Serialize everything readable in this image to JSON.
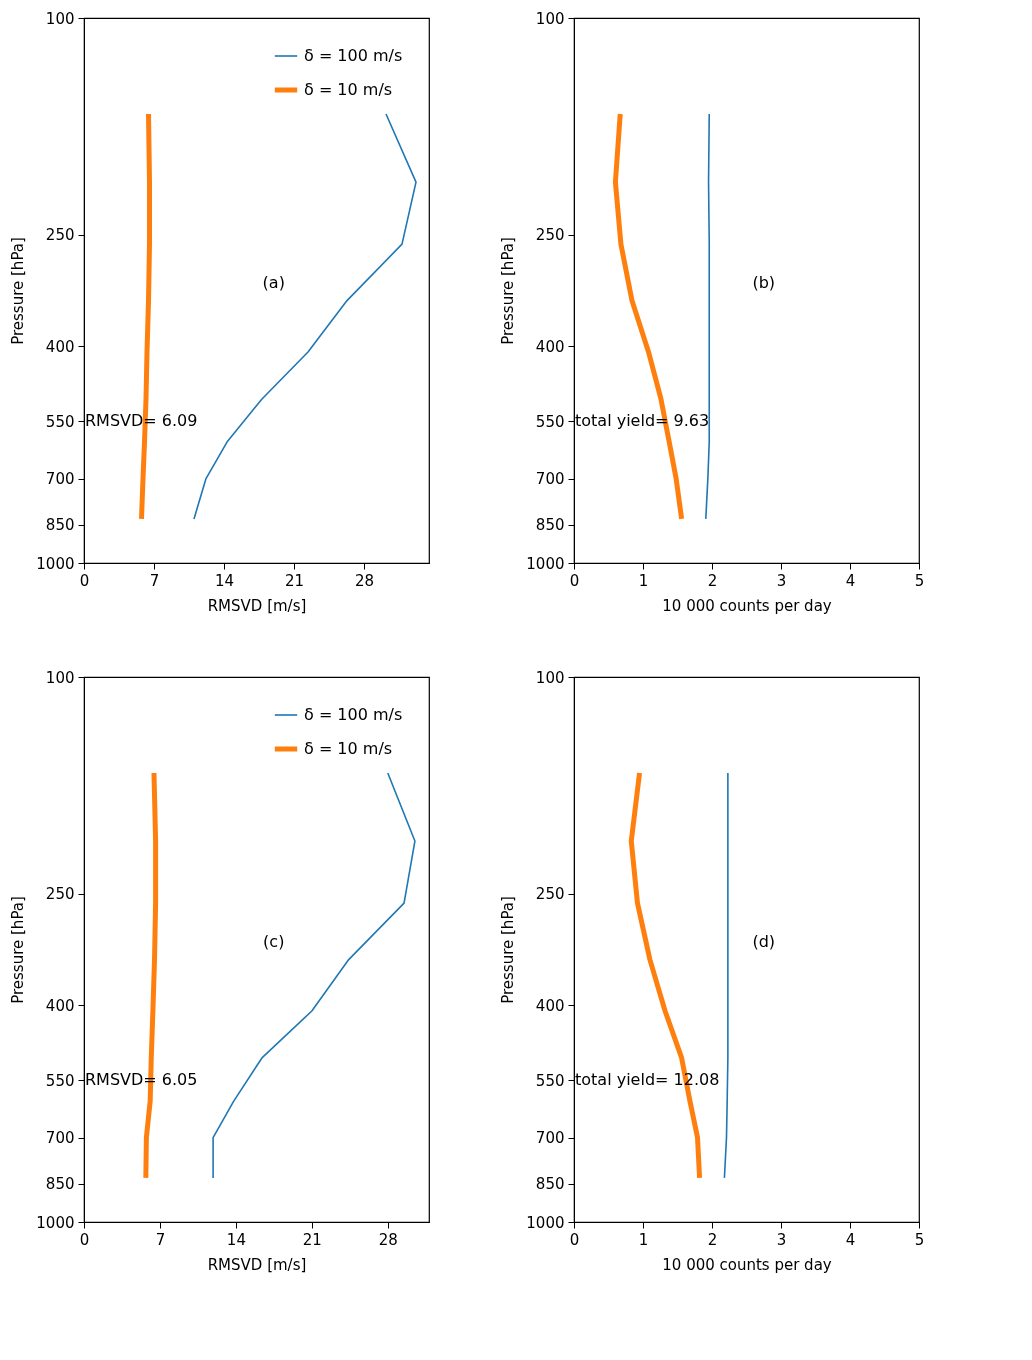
{
  "chart_data": [
    {
      "type": "line",
      "xlabel": "RMSVD [m/s]",
      "ylabel": "Pressure [hPa]",
      "annotations": [
        "(a)",
        "RMSVD= 6.09"
      ],
      "log": "y",
      "xlim": [
        0,
        34.5
      ],
      "xticks": [
        0,
        7,
        14,
        21,
        28
      ],
      "ylim": [
        1000,
        100
      ],
      "yticks": [
        100,
        250,
        400,
        550,
        700,
        850,
        1000
      ],
      "grid": false,
      "legend": "top right",
      "series": [
        {
          "name": "δ = 100 m/s",
          "color": "#1f77b4",
          "x": [
            30.2,
            33.2,
            31.8,
            26.3,
            22.4,
            17.8,
            14.3,
            12.2,
            11.0
          ],
          "values": [
            150,
            200,
            260,
            330,
            410,
            500,
            600,
            700,
            830
          ]
        },
        {
          "name": "δ = 10 m/s",
          "color": "#ff7f0e",
          "x": [
            6.45,
            6.55,
            6.55,
            6.45,
            6.3,
            6.2,
            6.05,
            5.9,
            5.75
          ],
          "values": [
            150,
            200,
            260,
            330,
            410,
            500,
            600,
            700,
            830
          ]
        }
      ]
    },
    {
      "type": "line",
      "xlabel": "10 000 counts per day",
      "ylabel": "Pressure [hPa]",
      "annotations": [
        "(b)",
        "total yield= 9.63"
      ],
      "log": "y",
      "xlim": [
        0,
        5
      ],
      "xticks": [
        0,
        1,
        2,
        3,
        4,
        5
      ],
      "ylim": [
        1000,
        100
      ],
      "yticks": [
        100,
        250,
        400,
        550,
        700,
        850,
        1000
      ],
      "grid": false,
      "series": [
        {
          "color": "#1f77b4",
          "x": [
            1.96,
            1.95,
            1.96,
            1.96,
            1.96,
            1.96,
            1.96,
            1.94,
            1.91
          ],
          "values": [
            150,
            200,
            260,
            330,
            410,
            500,
            600,
            700,
            830
          ]
        },
        {
          "color": "#ff7f0e",
          "x": [
            0.67,
            0.6,
            0.68,
            0.84,
            1.08,
            1.26,
            1.38,
            1.48,
            1.56
          ],
          "values": [
            150,
            200,
            260,
            330,
            410,
            500,
            600,
            700,
            830
          ]
        }
      ]
    },
    {
      "type": "line",
      "xlabel": "RMSVD [m/s]",
      "ylabel": "Pressure [hPa]",
      "annotations": [
        "(c)",
        "RMSVD= 6.05"
      ],
      "log": "y",
      "xlim": [
        0,
        31.8
      ],
      "xticks": [
        0,
        7,
        14,
        21,
        28
      ],
      "ylim": [
        1000,
        100
      ],
      "yticks": [
        100,
        250,
        400,
        550,
        700,
        850,
        1000
      ],
      "grid": false,
      "legend": "top right",
      "series": [
        {
          "name": "δ = 100 m/s",
          "color": "#1f77b4",
          "x": [
            28.0,
            30.5,
            29.5,
            24.4,
            21.0,
            16.4,
            13.8,
            11.9,
            11.9
          ],
          "values": [
            150,
            200,
            260,
            330,
            410,
            500,
            600,
            700,
            830
          ]
        },
        {
          "name": "δ = 10 m/s",
          "color": "#ff7f0e",
          "x": [
            6.45,
            6.6,
            6.6,
            6.5,
            6.35,
            6.2,
            6.1,
            5.75,
            5.7
          ],
          "values": [
            150,
            200,
            260,
            330,
            410,
            500,
            600,
            700,
            830
          ]
        }
      ]
    },
    {
      "type": "line",
      "xlabel": "10 000 counts per day",
      "ylabel": "Pressure [hPa]",
      "annotations": [
        "(d)",
        "total yield= 12.08"
      ],
      "log": "y",
      "xlim": [
        0,
        5
      ],
      "xticks": [
        0,
        1,
        2,
        3,
        4,
        5
      ],
      "ylim": [
        1000,
        100
      ],
      "yticks": [
        100,
        250,
        400,
        550,
        700,
        850,
        1000
      ],
      "grid": false,
      "series": [
        {
          "color": "#1f77b4",
          "x": [
            2.23,
            2.23,
            2.23,
            2.23,
            2.23,
            2.23,
            2.22,
            2.21,
            2.18
          ],
          "values": [
            150,
            200,
            260,
            330,
            410,
            500,
            600,
            700,
            830
          ]
        },
        {
          "color": "#ff7f0e",
          "x": [
            0.95,
            0.83,
            0.92,
            1.1,
            1.32,
            1.56,
            1.68,
            1.79,
            1.82
          ],
          "values": [
            150,
            200,
            260,
            330,
            410,
            500,
            600,
            700,
            830
          ]
        }
      ]
    }
  ]
}
